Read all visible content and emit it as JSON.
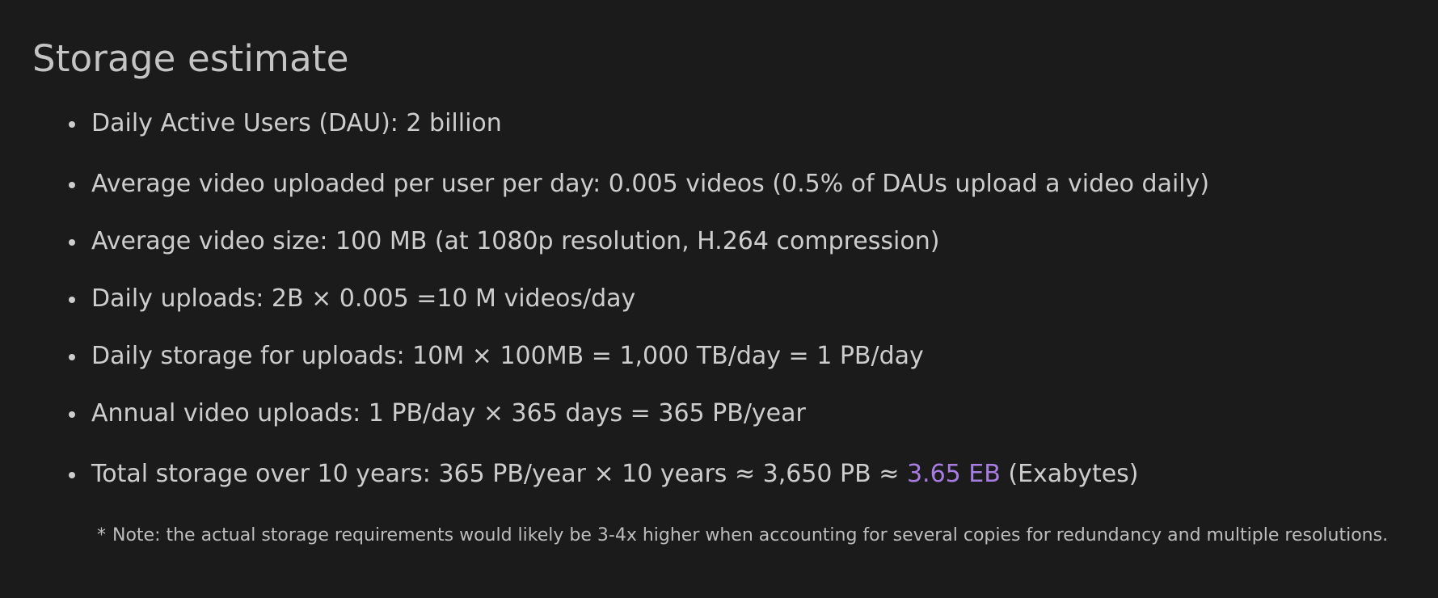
{
  "title": "Storage estimate",
  "items": [
    "Daily Active Users (DAU): 2 billion",
    "Average video uploaded per user per day: 0.005 videos (0.5% of DAUs upload a video daily)",
    "Average video size: 100 MB (at 1080p resolution, H.264 compression)",
    "Daily uploads: 2B × 0.005 =10 M videos/day",
    "Daily storage for uploads: 10M × 100MB = 1,000 TB/day = 1 PB/day",
    "Annual video uploads: 1 PB/day × 365 days = 365 PB/year"
  ],
  "total": {
    "prefix": "Total storage over 10 years: 365 PB/year × 10 years ≈ 3,650 PB ≈ ",
    "highlight": "3.65 EB",
    "suffix": " (Exabytes)"
  },
  "note": {
    "marker": "*",
    "text": "Note: the actual storage requirements would likely be 3-4x higher when accounting for several copies for redundancy and multiple resolutions."
  },
  "colors": {
    "background": "#1b1b1b",
    "text": "#cdcdcd",
    "highlight": "#a77de3"
  }
}
